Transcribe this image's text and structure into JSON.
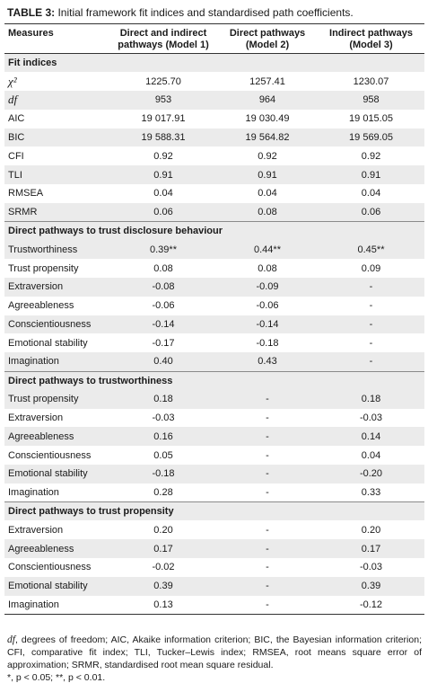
{
  "caption": {
    "label": "TABLE 3:",
    "text": "Initial framework fit indices and standardised path coefficients."
  },
  "headers": {
    "measures": "Measures",
    "model1": "Direct and indirect pathways (Model 1)",
    "model2": "Direct pathways (Model 2)",
    "model3": "Indirect pathways (Model 3)"
  },
  "sections": [
    {
      "title": "Fit indices",
      "rows": [
        {
          "label": "χ²",
          "italic": true,
          "m1": "1225.70",
          "m2": "1257.41",
          "m3": "1230.07"
        },
        {
          "label": "df",
          "italic": true,
          "m1": "953",
          "m2": "964",
          "m3": "958"
        },
        {
          "label": "AIC",
          "m1": "19 017.91",
          "m2": "19 030.49",
          "m3": "19 015.05"
        },
        {
          "label": "BIC",
          "m1": "19 588.31",
          "m2": "19 564.82",
          "m3": "19 569.05"
        },
        {
          "label": "CFI",
          "m1": "0.92",
          "m2": "0.92",
          "m3": "0.92"
        },
        {
          "label": "TLI",
          "m1": "0.91",
          "m2": "0.91",
          "m3": "0.91"
        },
        {
          "label": "RMSEA",
          "m1": "0.04",
          "m2": "0.04",
          "m3": "0.04"
        },
        {
          "label": "SRMR",
          "m1": "0.06",
          "m2": "0.08",
          "m3": "0.06"
        }
      ]
    },
    {
      "title": "Direct pathways to trust disclosure behaviour",
      "rows": [
        {
          "label": "Trustworthiness",
          "m1": "0.39**",
          "m2": "0.44**",
          "m3": "0.45**"
        },
        {
          "label": "Trust propensity",
          "m1": "0.08",
          "m2": "0.08",
          "m3": "0.09"
        },
        {
          "label": "Extraversion",
          "m1": "-0.08",
          "m2": "-0.09",
          "m3": "-"
        },
        {
          "label": "Agreeableness",
          "m1": "-0.06",
          "m2": "-0.06",
          "m3": "-"
        },
        {
          "label": "Conscientiousness",
          "m1": "-0.14",
          "m2": "-0.14",
          "m3": "-"
        },
        {
          "label": "Emotional stability",
          "m1": "-0.17",
          "m2": "-0.18",
          "m3": "-"
        },
        {
          "label": "Imagination",
          "m1": "0.40",
          "m2": "0.43",
          "m3": "-"
        }
      ]
    },
    {
      "title": "Direct pathways to trustworthiness",
      "rows": [
        {
          "label": "Trust propensity",
          "m1": "0.18",
          "m2": "-",
          "m3": "0.18"
        },
        {
          "label": "Extraversion",
          "m1": "-0.03",
          "m2": "-",
          "m3": "-0.03"
        },
        {
          "label": "Agreeableness",
          "m1": "0.16",
          "m2": "-",
          "m3": "0.14"
        },
        {
          "label": "Conscientiousness",
          "m1": "0.05",
          "m2": "-",
          "m3": "0.04"
        },
        {
          "label": "Emotional stability",
          "m1": "-0.18",
          "m2": "-",
          "m3": "-0.20"
        },
        {
          "label": "Imagination",
          "m1": "0.28",
          "m2": "-",
          "m3": "0.33"
        }
      ]
    },
    {
      "title": "Direct pathways to trust propensity",
      "rows": [
        {
          "label": "Extraversion",
          "m1": "0.20",
          "m2": "-",
          "m3": "0.20"
        },
        {
          "label": "Agreeableness",
          "m1": "0.17",
          "m2": "-",
          "m3": "0.17"
        },
        {
          "label": "Conscientiousness",
          "m1": "-0.02",
          "m2": "-",
          "m3": "-0.03"
        },
        {
          "label": "Emotional stability",
          "m1": "0.39",
          "m2": "-",
          "m3": "0.39"
        },
        {
          "label": "Imagination",
          "m1": "0.13",
          "m2": "-",
          "m3": "-0.12"
        }
      ]
    }
  ],
  "notes": {
    "df_abbr": "df",
    "abbreviations": ", degrees of freedom; AIC, Akaike information criterion; BIC, the Bayesian information criterion; CFI, comparative fit index; TLI, Tucker–Lewis index; RMSEA, root means square error of approximation; SRMR, standardised root mean square residual.",
    "significance": "*, p < 0.05; **, p < 0.01."
  }
}
